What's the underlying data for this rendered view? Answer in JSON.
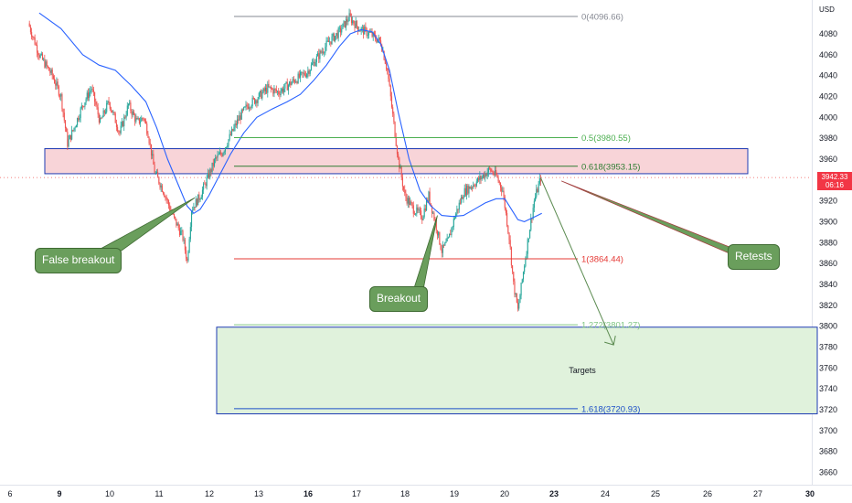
{
  "axis": {
    "currency": "USD",
    "y_ticks": [
      4080,
      4060,
      4040,
      4020,
      4000,
      3980,
      3960,
      3940,
      3920,
      3900,
      3880,
      3860,
      3840,
      3820,
      3800,
      3780,
      3760,
      3740,
      3720,
      3700,
      3680,
      3660
    ],
    "x_ticks": [
      {
        "label": "6",
        "bold": false
      },
      {
        "label": "9",
        "bold": true
      },
      {
        "label": "10",
        "bold": false
      },
      {
        "label": "11",
        "bold": false
      },
      {
        "label": "12",
        "bold": false
      },
      {
        "label": "13",
        "bold": false
      },
      {
        "label": "16",
        "bold": true
      },
      {
        "label": "17",
        "bold": false
      },
      {
        "label": "18",
        "bold": false
      },
      {
        "label": "19",
        "bold": false
      },
      {
        "label": "20",
        "bold": false
      },
      {
        "label": "23",
        "bold": true
      },
      {
        "label": "24",
        "bold": false
      },
      {
        "label": "25",
        "bold": false
      },
      {
        "label": "26",
        "bold": false
      },
      {
        "label": "27",
        "bold": false
      },
      {
        "label": "30",
        "bold": true
      }
    ]
  },
  "price_tag": {
    "price": "3942.33",
    "countdown": "06:16"
  },
  "annotations": {
    "false_breakout": "False breakout",
    "breakout": "Breakout",
    "retests": "Retests",
    "targets": "Targets"
  },
  "colors": {
    "up": "#26a69a",
    "down": "#ef5350",
    "ma": "#2962ff",
    "resistance_fill": "#f8d4d8",
    "target_fill": "#e0f2dc",
    "box_border": "#1e3bb3",
    "callout": "#6a9e5c",
    "arrow": "#5a8a4f"
  },
  "chart_data": {
    "type": "candlestick",
    "instrument_currency": "USD",
    "ylim": [
      3650,
      4110
    ],
    "x_labels": [
      "6",
      "9",
      "10",
      "11",
      "12",
      "13",
      "16",
      "17",
      "18",
      "19",
      "20",
      "23",
      "24",
      "25",
      "26",
      "27",
      "30"
    ],
    "current_price": 3942.33,
    "fib_levels": [
      {
        "label": "0(4096.66)",
        "value": 4096.66,
        "color": "#868993"
      },
      {
        "label": "0.5(3980.55)",
        "value": 3980.55,
        "color": "#4caf50"
      },
      {
        "label": "0.618(3953.15)",
        "value": 3953.15,
        "color": "#2e7d32"
      },
      {
        "label": "1(3864.44)",
        "value": 3864.44,
        "color": "#e53935"
      },
      {
        "label": "1.272(3801.27)",
        "value": 3801.27,
        "color": "#81c784"
      },
      {
        "label": "1.618(3720.93)",
        "value": 3720.93,
        "color": "#1e50c8"
      }
    ],
    "resistance_zone": [
      3946,
      3970
    ],
    "target_zone": [
      3716,
      3799
    ],
    "price_path": [
      [
        0.0,
        4090
      ],
      [
        1.0,
        4060
      ],
      [
        2.2,
        4040
      ],
      [
        3.0,
        4020
      ],
      [
        3.6,
        3975
      ],
      [
        4.2,
        3990
      ],
      [
        5.0,
        4012
      ],
      [
        5.8,
        4028
      ],
      [
        6.6,
        3995
      ],
      [
        7.4,
        4015
      ],
      [
        8.4,
        3985
      ],
      [
        9.2,
        4012
      ],
      [
        10.0,
        3995
      ],
      [
        10.6,
        4000
      ],
      [
        11.0,
        3985
      ],
      [
        11.6,
        3948
      ],
      [
        12.4,
        3930
      ],
      [
        13.3,
        3905
      ],
      [
        14.2,
        3885
      ],
      [
        14.6,
        3862
      ],
      [
        15.0,
        3912
      ],
      [
        15.8,
        3925
      ],
      [
        16.6,
        3945
      ],
      [
        17.2,
        3960
      ],
      [
        17.8,
        3966
      ],
      [
        18.6,
        3983
      ],
      [
        19.4,
        4000
      ],
      [
        20.2,
        4012
      ],
      [
        21.0,
        4018
      ],
      [
        22.0,
        4028
      ],
      [
        23.0,
        4024
      ],
      [
        24.4,
        4035
      ],
      [
        25.6,
        4043
      ],
      [
        26.6,
        4058
      ],
      [
        27.6,
        4072
      ],
      [
        28.6,
        4082
      ],
      [
        29.5,
        4096
      ],
      [
        30.4,
        4085
      ],
      [
        31.4,
        4080
      ],
      [
        32.4,
        4072
      ],
      [
        33.0,
        4045
      ],
      [
        33.4,
        4010
      ],
      [
        34.0,
        3960
      ],
      [
        34.6,
        3925
      ],
      [
        35.4,
        3912
      ],
      [
        36.2,
        3905
      ],
      [
        36.8,
        3925
      ],
      [
        37.4,
        3900
      ],
      [
        38.0,
        3872
      ],
      [
        38.6,
        3882
      ],
      [
        39.2,
        3905
      ],
      [
        40.0,
        3928
      ],
      [
        40.8,
        3935
      ],
      [
        41.6,
        3942
      ],
      [
        42.4,
        3950
      ],
      [
        43.0,
        3944
      ],
      [
        43.6,
        3930
      ],
      [
        44.2,
        3885
      ],
      [
        44.6,
        3840
      ],
      [
        45.0,
        3815
      ],
      [
        45.5,
        3852
      ],
      [
        46.0,
        3888
      ],
      [
        46.5,
        3920
      ],
      [
        47.1,
        3942
      ]
    ],
    "ma_path": [
      [
        1.0,
        4100
      ],
      [
        3.0,
        4085
      ],
      [
        5.0,
        4060
      ],
      [
        6.5,
        4050
      ],
      [
        8.0,
        4045
      ],
      [
        9.5,
        4030
      ],
      [
        10.8,
        4015
      ],
      [
        11.8,
        3990
      ],
      [
        12.8,
        3960
      ],
      [
        13.8,
        3935
      ],
      [
        14.6,
        3915
      ],
      [
        15.2,
        3908
      ],
      [
        15.8,
        3912
      ],
      [
        16.6,
        3925
      ],
      [
        17.6,
        3945
      ],
      [
        18.6,
        3965
      ],
      [
        19.8,
        3985
      ],
      [
        21.0,
        4000
      ],
      [
        22.4,
        4008
      ],
      [
        23.8,
        4015
      ],
      [
        25.0,
        4022
      ],
      [
        26.2,
        4035
      ],
      [
        27.4,
        4050
      ],
      [
        28.6,
        4068
      ],
      [
        29.6,
        4080
      ],
      [
        30.6,
        4084
      ],
      [
        31.6,
        4082
      ],
      [
        32.4,
        4070
      ],
      [
        33.2,
        4045
      ],
      [
        34.0,
        4005
      ],
      [
        35.0,
        3960
      ],
      [
        36.0,
        3930
      ],
      [
        37.0,
        3915
      ],
      [
        38.0,
        3906
      ],
      [
        39.0,
        3905
      ],
      [
        40.0,
        3906
      ],
      [
        41.0,
        3912
      ],
      [
        42.0,
        3918
      ],
      [
        43.0,
        3922
      ],
      [
        43.8,
        3922
      ],
      [
        44.4,
        3912
      ],
      [
        45.0,
        3902
      ],
      [
        45.6,
        3900
      ],
      [
        46.2,
        3903
      ],
      [
        46.8,
        3906
      ],
      [
        47.2,
        3908
      ]
    ],
    "drawings": {
      "false_breakout_anchor": [
        15.3,
        3923
      ],
      "breakout_anchor": [
        37.6,
        3906
      ],
      "retest_projection": {
        "from": [
          47.1,
          3942
        ],
        "to": [
          53.8,
          3782
        ]
      },
      "retest_slope": {
        "from": [
          49.0,
          3939
        ],
        "to": [
          58.0,
          3885
        ]
      }
    }
  }
}
